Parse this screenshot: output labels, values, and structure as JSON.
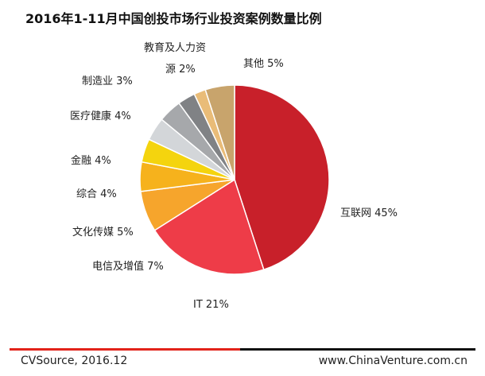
{
  "chart_data": {
    "type": "pie",
    "title": "2016年1-11月中国创投市场行业投资案例数量比例",
    "slices": [
      {
        "label": "互联网 45%",
        "value": 45,
        "color": "#c8202a"
      },
      {
        "label": "IT 21%",
        "value": 21,
        "color": "#ee3c48"
      },
      {
        "label": "电信及增值 7%",
        "value": 7,
        "color": "#f6a52c"
      },
      {
        "label": "文化传媒 5%",
        "value": 5,
        "color": "#f6b21c"
      },
      {
        "label": "综合 4%",
        "value": 4,
        "color": "#f4d40e"
      },
      {
        "label": "金融 4%",
        "value": 4,
        "color": "#d3d6d9"
      },
      {
        "label": "医疗健康 4%",
        "value": 4,
        "color": "#a6a8ab"
      },
      {
        "label": "制造业 3%",
        "value": 3,
        "color": "#808285"
      },
      {
        "label": "教育及人力资源 2%",
        "value": 2,
        "color": "#595a5c"
      },
      {
        "label": "其他 5%",
        "value": 5,
        "color": "#e8b97b"
      }
    ],
    "extra_colors": {
      "education": "#e9bc78",
      "other": "#c8a46c"
    }
  },
  "footer": {
    "source": "CVSource, 2016.12",
    "site": "www.ChinaVenture.com.cn"
  }
}
